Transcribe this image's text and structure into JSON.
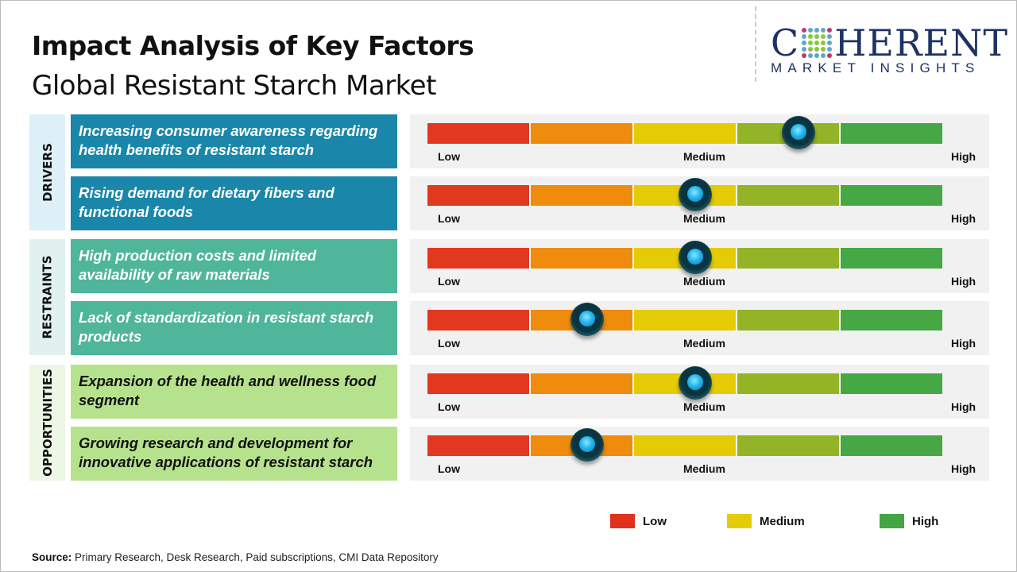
{
  "header": {
    "title": "Impact Analysis of Key Factors",
    "subtitle": "Global Resistant Starch Market"
  },
  "logo": {
    "main_left": "C",
    "main_right": "HERENT",
    "sub": "MARKET INSIGHTS"
  },
  "scale": {
    "low": "Low",
    "medium": "Medium",
    "high": "High",
    "segment_colors": [
      "#e2381f",
      "#ef8b0d",
      "#e5cb06",
      "#93b426",
      "#45a845"
    ]
  },
  "sections": [
    {
      "label": "DRIVERS",
      "color": "#1a87aa",
      "side_bg": "#ddf0f7",
      "text_color": "#ffffff",
      "factors": [
        {
          "text": "Increasing consumer awareness regarding health benefits of resistant starch",
          "impact": 0.72
        },
        {
          "text": "Rising demand for dietary fibers and functional foods",
          "impact": 0.52
        }
      ]
    },
    {
      "label": "RESTRAINTS",
      "color": "#4fb59b",
      "side_bg": "#e0f1ef",
      "text_color": "#ffffff",
      "factors": [
        {
          "text": "High production costs and limited availability of raw materials",
          "impact": 0.52
        },
        {
          "text": "Lack of standardization in resistant starch products",
          "impact": 0.31
        }
      ]
    },
    {
      "label": "OPPORTUNITIES",
      "color": "#b7e28d",
      "side_bg": "#edf7e5",
      "text_color": "#111111",
      "factors": [
        {
          "text": "Expansion of the health and wellness food segment",
          "impact": 0.52
        },
        {
          "text": "Growing research and development for innovative applications of resistant starch",
          "impact": 0.31
        }
      ]
    }
  ],
  "legend": [
    {
      "label": "Low",
      "color": "#e0301e"
    },
    {
      "label": "Medium",
      "color": "#e4cc06"
    },
    {
      "label": "High",
      "color": "#43a543"
    }
  ],
  "source": {
    "label": "Source:",
    "text": " Primary Research, Desk Research, Paid subscriptions, CMI Data Repository"
  }
}
